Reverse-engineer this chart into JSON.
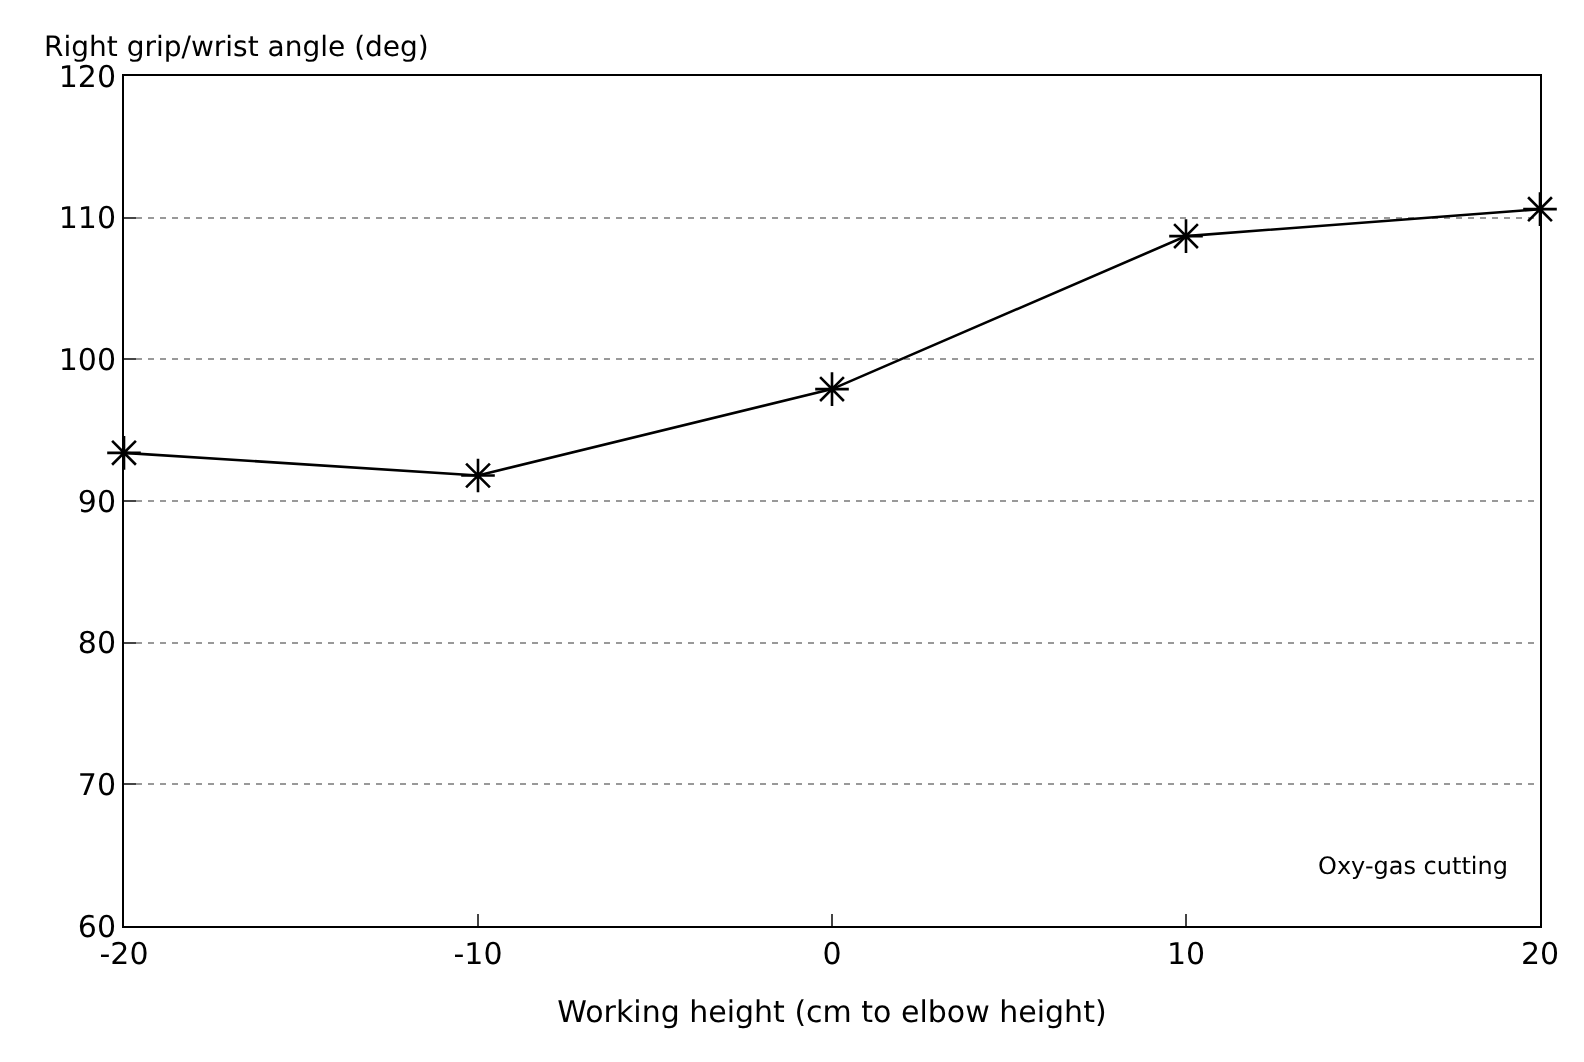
{
  "chart_data": {
    "type": "line",
    "ylabel": "Right grip/wrist angle (deg)",
    "xlabel": "Working height (cm to elbow height)",
    "x": [
      -20,
      -10,
      0,
      10,
      20
    ],
    "series": [
      {
        "color": "#000000",
        "values": [
          93.4,
          91.8,
          97.9,
          108.7,
          110.6
        ]
      }
    ],
    "xlim": [
      -20,
      20
    ],
    "xticks": [
      -20,
      -10,
      0,
      10,
      20
    ],
    "ylim": [
      60,
      120
    ],
    "yticks": [
      60,
      70,
      80,
      90,
      100,
      110,
      120
    ],
    "grid": "y",
    "marker": "cross",
    "line_style": "solid",
    "legend": false,
    "annotations": [
      "Oxy-gas cutting"
    ]
  }
}
